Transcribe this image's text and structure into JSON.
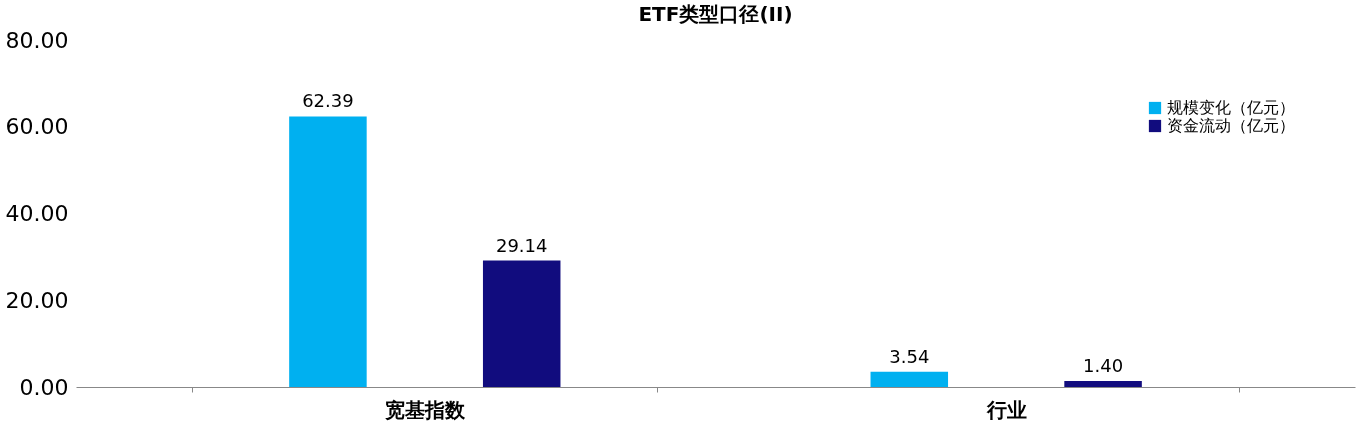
{
  "chart_data": {
    "type": "bar",
    "title": "ETF类型口径(II)",
    "categories": [
      "宽基指数",
      "行业"
    ],
    "series": [
      {
        "name": "规模变化（亿元）",
        "color": "#00b0f0",
        "values": [
          62.39,
          3.54
        ],
        "value_labels": [
          "62.39",
          "3.54"
        ]
      },
      {
        "name": "资金流动（亿元）",
        "color": "#110c7e",
        "values": [
          29.14,
          1.4
        ],
        "value_labels": [
          "29.14",
          "1.40"
        ]
      }
    ],
    "ylim": [
      0,
      80
    ],
    "yticks": [
      {
        "value": 0,
        "label": "0.00"
      },
      {
        "value": 20,
        "label": "20.00"
      },
      {
        "value": 40,
        "label": "40.00"
      },
      {
        "value": 60,
        "label": "60.00"
      },
      {
        "value": 80,
        "label": "80.00"
      }
    ],
    "grid": false,
    "legend": "top right"
  }
}
